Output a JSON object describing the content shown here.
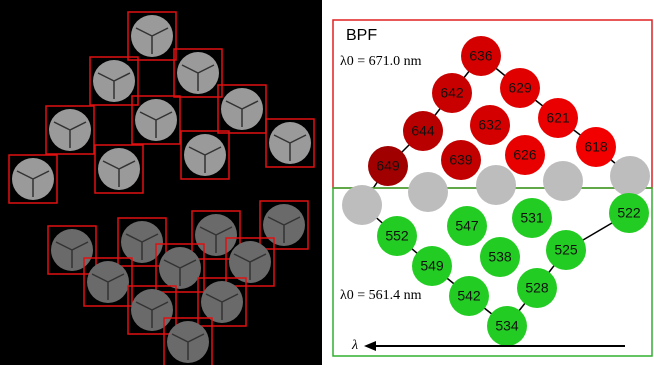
{
  "panel_title": "BPF",
  "red_label": "λ0 = 671.0 nm",
  "green_label": "λ0 = 561.4 nm",
  "arrow_label": "λ",
  "red_nodes": [
    {
      "label": "636",
      "color": "#d40000"
    },
    {
      "label": "629",
      "color": "#e00000"
    },
    {
      "label": "642",
      "color": "#c80000"
    },
    {
      "label": "621",
      "color": "#ea0000"
    },
    {
      "label": "632",
      "color": "#d40000"
    },
    {
      "label": "644",
      "color": "#b80000"
    },
    {
      "label": "626",
      "color": "#e80000"
    },
    {
      "label": "618",
      "color": "#f20000"
    },
    {
      "label": "639",
      "color": "#c20000"
    },
    {
      "label": "649",
      "color": "#a00000"
    }
  ],
  "green_nodes": [
    {
      "label": "522",
      "color": "#22cc22"
    },
    {
      "label": "531",
      "color": "#22cc22"
    },
    {
      "label": "547",
      "color": "#22cc22"
    },
    {
      "label": "552",
      "color": "#22cc22"
    },
    {
      "label": "525",
      "color": "#22cc22"
    },
    {
      "label": "538",
      "color": "#22cc22"
    },
    {
      "label": "549",
      "color": "#22cc22"
    },
    {
      "label": "528",
      "color": "#22cc22"
    },
    {
      "label": "542",
      "color": "#22cc22"
    },
    {
      "label": "534",
      "color": "#22cc22"
    }
  ]
}
